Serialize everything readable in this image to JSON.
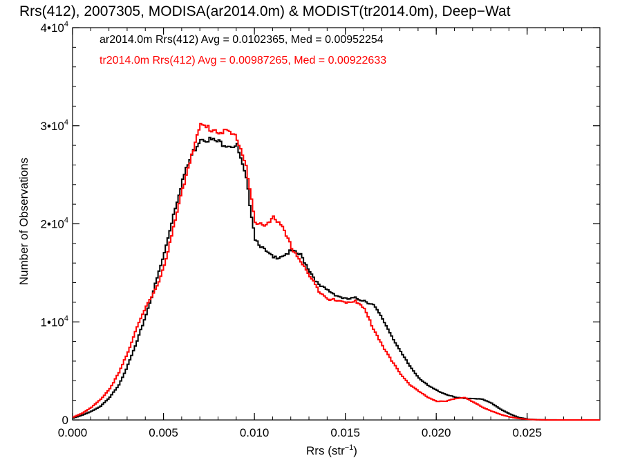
{
  "chart_data": {
    "type": "line",
    "title": "Rrs(412), 2007305, MODISA(ar2014.0m) & MODIST(tr2014.0m), Deep−Wat",
    "xlabel": "Rrs (str",
    "xlabel_sup": "−1",
    "xlabel_end": ")",
    "ylabel": "Number of Observations",
    "xlim": [
      0.0,
      0.029
    ],
    "ylim": [
      0,
      40000
    ],
    "x_ticks": [
      {
        "value": 0.0,
        "label": "0.000"
      },
      {
        "value": 0.005,
        "label": "0.005"
      },
      {
        "value": 0.01,
        "label": "0.010"
      },
      {
        "value": 0.015,
        "label": "0.015"
      },
      {
        "value": 0.02,
        "label": "0.020"
      },
      {
        "value": 0.025,
        "label": "0.025"
      }
    ],
    "y_ticks": [
      {
        "value": 0,
        "base": "0",
        "exp": ""
      },
      {
        "value": 10000,
        "base": "1•10",
        "exp": "4"
      },
      {
        "value": 20000,
        "base": "2•10",
        "exp": "4"
      },
      {
        "value": 30000,
        "base": "3•10",
        "exp": "4"
      },
      {
        "value": 40000,
        "base": "4•10",
        "exp": "4"
      }
    ],
    "legend_position": "top-left",
    "series": [
      {
        "name": "ar2014.0m Rrs(412) Avg = 0.0102365, Med = 0.00952254",
        "color": "#000000",
        "x": [
          0.0,
          0.0005,
          0.001,
          0.0015,
          0.002,
          0.0025,
          0.003,
          0.0035,
          0.004,
          0.0045,
          0.005,
          0.0055,
          0.006,
          0.0065,
          0.007,
          0.0075,
          0.008,
          0.0085,
          0.009,
          0.0095,
          0.01,
          0.0105,
          0.011,
          0.0115,
          0.012,
          0.0125,
          0.013,
          0.0135,
          0.014,
          0.0145,
          0.015,
          0.0155,
          0.016,
          0.0165,
          0.017,
          0.0175,
          0.018,
          0.0185,
          0.019,
          0.0195,
          0.02,
          0.0205,
          0.021,
          0.0215,
          0.022,
          0.0225,
          0.023,
          0.0235,
          0.024,
          0.0245,
          0.025,
          0.0255,
          0.026,
          0.027,
          0.029
        ],
        "y": [
          200,
          500,
          900,
          1400,
          2300,
          3600,
          5600,
          8000,
          10800,
          13800,
          17000,
          21000,
          24500,
          27000,
          28800,
          28600,
          28300,
          28100,
          27900,
          24500,
          18500,
          17300,
          16500,
          16800,
          17200,
          16800,
          15200,
          13700,
          13200,
          12700,
          12300,
          12400,
          12200,
          11700,
          10300,
          8600,
          6900,
          5500,
          4300,
          3500,
          3000,
          2600,
          2300,
          2200,
          2200,
          2100,
          1700,
          1100,
          600,
          250,
          80,
          30,
          10,
          0,
          0
        ]
      },
      {
        "name": "tr2014.0m Rrs(412) Avg = 0.00987265, Med = 0.00922633",
        "color": "#ff0000",
        "x": [
          0.0,
          0.0005,
          0.001,
          0.0015,
          0.002,
          0.0025,
          0.003,
          0.0035,
          0.004,
          0.0045,
          0.005,
          0.0055,
          0.006,
          0.0065,
          0.007,
          0.0075,
          0.008,
          0.0085,
          0.009,
          0.0095,
          0.01,
          0.0105,
          0.011,
          0.0115,
          0.012,
          0.0125,
          0.013,
          0.0135,
          0.014,
          0.0145,
          0.015,
          0.0155,
          0.016,
          0.0165,
          0.017,
          0.0175,
          0.018,
          0.0185,
          0.019,
          0.0195,
          0.02,
          0.0205,
          0.021,
          0.0215,
          0.022,
          0.0225,
          0.023,
          0.0235,
          0.024,
          0.0245,
          0.025,
          0.0255,
          0.026,
          0.027,
          0.029
        ],
        "y": [
          300,
          700,
          1300,
          2100,
          3200,
          4800,
          6900,
          9600,
          11500,
          13200,
          15800,
          19500,
          23500,
          27200,
          30000,
          29700,
          29500,
          29300,
          28800,
          26000,
          20000,
          19800,
          20800,
          19500,
          17600,
          16200,
          14600,
          13200,
          12400,
          12100,
          12000,
          12200,
          11300,
          9300,
          7600,
          6000,
          4700,
          3600,
          2900,
          2300,
          1900,
          1900,
          2200,
          2300,
          1800,
          1300,
          900,
          550,
          300,
          150,
          60,
          20,
          5,
          0,
          0
        ]
      }
    ]
  }
}
